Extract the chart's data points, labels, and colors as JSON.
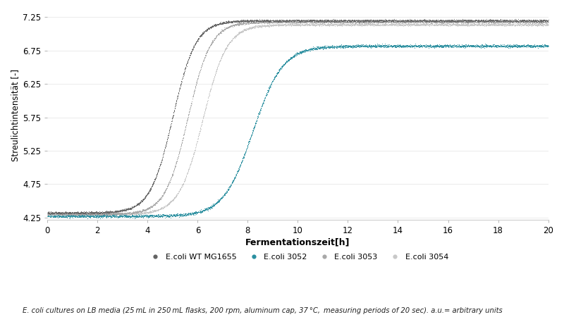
{
  "title": "",
  "xlabel": "Fermentationszeit[h]",
  "ylabel": "Streulichtintensität [-]",
  "xlim": [
    0,
    20
  ],
  "ylim": [
    4.22,
    7.35
  ],
  "xticks": [
    0,
    2,
    4,
    6,
    8,
    10,
    12,
    14,
    16,
    18,
    20
  ],
  "yticks": [
    4.25,
    4.75,
    5.25,
    5.75,
    6.25,
    6.75,
    7.25
  ],
  "series": [
    {
      "label": "E.coli WT MG1655",
      "color": "#636363",
      "midpoint": 5.0,
      "rate": 2.2,
      "y_start": 4.32,
      "y_end": 7.2,
      "noise": 0.008
    },
    {
      "label": "E.coli 3052",
      "color": "#2a8fa0",
      "midpoint": 8.2,
      "rate": 1.7,
      "y_start": 4.27,
      "y_end": 6.82,
      "noise": 0.01
    },
    {
      "label": "E.coli 3053",
      "color": "#a8a8a8",
      "midpoint": 5.6,
      "rate": 2.2,
      "y_start": 4.3,
      "y_end": 7.18,
      "noise": 0.008
    },
    {
      "label": "E.coli 3054",
      "color": "#c8c8c8",
      "midpoint": 6.2,
      "rate": 2.1,
      "y_start": 4.3,
      "y_end": 7.14,
      "noise": 0.008
    }
  ],
  "footnote": "E. coli cultures on LB media (25 mL in 250 mL flasks, 200 rpm, aluminum cap, 37 °C, measuring periods of 20 sec). a.u.= arbitrary units",
  "background_color": "#ffffff",
  "grid_color": "#e8e8e8",
  "n_points": 3600,
  "marker_size": 0.6,
  "xlabel_fontsize": 9,
  "ylabel_fontsize": 8.5,
  "tick_fontsize": 8.5,
  "legend_fontsize": 8.0
}
